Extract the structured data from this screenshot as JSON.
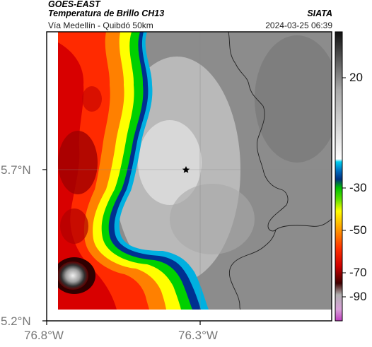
{
  "header": {
    "satellite": "GOES-EAST",
    "product": "Temperatura de Brillo CH13",
    "brand": "SIATA",
    "subtitle": "Vía Medellín - Quibdó 50km",
    "timestamp": "2024-03-25 06:39"
  },
  "map": {
    "marker_icon": "star-icon",
    "lat_labels": [
      "5.7°N",
      "5.2°N"
    ],
    "lon_labels": [
      "76.8°W",
      "76.3°W"
    ]
  },
  "colorbar": {
    "labels": [
      "20",
      "-30",
      "-50",
      "-70",
      "-90"
    ],
    "colors": [
      "#111111",
      "#7a7a7a",
      "#e6e6e6",
      "#00b0e0",
      "#003080",
      "#00d000",
      "#ffff00",
      "#ff7000",
      "#d00000",
      "#400000",
      "#b0b0b0",
      "#c040c0"
    ]
  }
}
